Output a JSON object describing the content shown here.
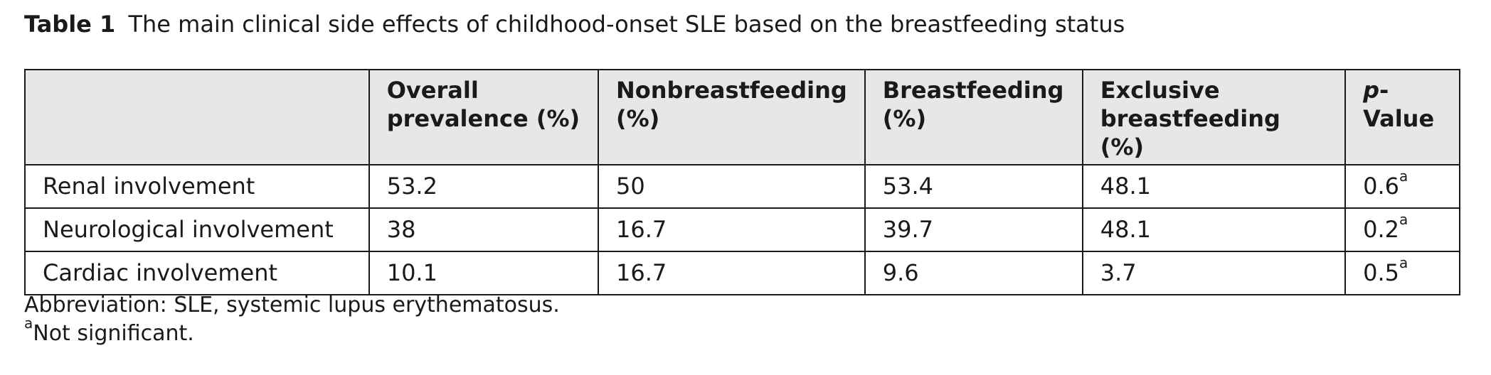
{
  "caption": {
    "label": "Table 1",
    "text": "The main clinical side effects of childhood-onset SLE based on the breastfeeding status"
  },
  "table": {
    "headers": {
      "row_label": "",
      "overall_line1": "Overall",
      "overall_line2": "prevalence (%)",
      "nonbf_line1": "Nonbreastfeeding",
      "nonbf_line2": "(%)",
      "bf_line1": "Breastfeeding",
      "bf_line2": "(%)",
      "excl_line1": "Exclusive",
      "excl_line2": "breastfeeding (%)",
      "p_italic": "p",
      "p_rest": "-Value"
    },
    "rows": [
      {
        "label": "Renal involvement",
        "overall": "53.2",
        "nonbf": "50",
        "bf": "53.4",
        "excl": "48.1",
        "p": "0.6",
        "p_sup": "a"
      },
      {
        "label": "Neurological involvement",
        "overall": "38",
        "nonbf": "16.7",
        "bf": "39.7",
        "excl": "48.1",
        "p": "0.2",
        "p_sup": "a"
      },
      {
        "label": "Cardiac involvement",
        "overall": "10.1",
        "nonbf": "16.7",
        "bf": "9.6",
        "excl": "3.7",
        "p": "0.5",
        "p_sup": "a"
      }
    ]
  },
  "footnotes": {
    "abbreviation": "Abbreviation: SLE, systemic lupus erythematosus.",
    "a_sup": "a",
    "a_text": "Not significant."
  }
}
